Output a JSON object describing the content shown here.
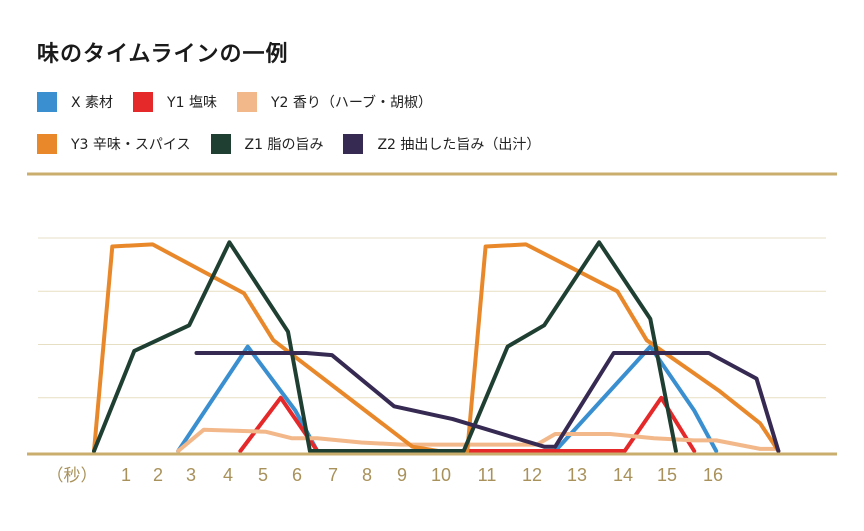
{
  "chart_data": {
    "type": "line",
    "title": "味のタイムラインの一例",
    "xlabel": "（秒）",
    "x": [
      0,
      1,
      2,
      3,
      4,
      5,
      6,
      7,
      8,
      9,
      10,
      11,
      12,
      13,
      14,
      15,
      16,
      17,
      18,
      19
    ],
    "x_tick_labels": [
      "1",
      "2",
      "3",
      "4",
      "5",
      "6",
      "7",
      "8",
      "9",
      "10",
      "11",
      "12",
      "13",
      "14",
      "15",
      "16"
    ],
    "ylim": [
      0,
      100
    ],
    "grid": true,
    "legend_position": "top-left",
    "series": [
      {
        "name": "X 素材",
        "color": "#3a8fd0",
        "points": [
          [
            2.3,
            0
          ],
          [
            4.2,
            49
          ],
          [
            5.5,
            19
          ],
          [
            6.1,
            0
          ],
          [
            12.6,
            0
          ],
          [
            15.2,
            49
          ],
          [
            16.4,
            19
          ],
          [
            17,
            0
          ]
        ]
      },
      {
        "name": "Y1 塩味",
        "color": "#e5282a",
        "points": [
          [
            4,
            0
          ],
          [
            5.1,
            25
          ],
          [
            6.1,
            0
          ],
          [
            14.5,
            0
          ],
          [
            15.5,
            25
          ],
          [
            16.4,
            0
          ]
        ]
      },
      {
        "name": "Y2 香り（ハーブ・胡椒）",
        "color": "#f2b88a",
        "points": [
          [
            2.3,
            0
          ],
          [
            3,
            10
          ],
          [
            4.7,
            9
          ],
          [
            5.4,
            6
          ],
          [
            6.1,
            6
          ],
          [
            7.3,
            4
          ],
          [
            8.4,
            3
          ],
          [
            9.4,
            3
          ],
          [
            11,
            3
          ],
          [
            12.1,
            3
          ],
          [
            12.6,
            8
          ],
          [
            14.1,
            8
          ],
          [
            15.3,
            6
          ],
          [
            16.4,
            5
          ],
          [
            17,
            5
          ],
          [
            18.2,
            1
          ],
          [
            18.6,
            1
          ]
        ]
      },
      {
        "name": "Y3 辛味・スパイス",
        "color": "#e8882a",
        "points": [
          [
            0,
            0
          ],
          [
            0.5,
            96
          ],
          [
            1.6,
            97
          ],
          [
            4.1,
            74
          ],
          [
            4.9,
            52
          ],
          [
            8.7,
            2
          ],
          [
            9.4,
            0
          ],
          [
            10.2,
            0
          ],
          [
            10.7,
            96
          ],
          [
            11.8,
            97
          ],
          [
            14.3,
            75
          ],
          [
            15.1,
            52
          ],
          [
            17.1,
            28
          ],
          [
            18.2,
            13
          ],
          [
            18.7,
            0
          ]
        ]
      },
      {
        "name": "Z1 脂の旨み",
        "color": "#1f3f33",
        "points": [
          [
            0,
            0
          ],
          [
            1.1,
            47
          ],
          [
            2.6,
            59
          ],
          [
            3.7,
            98
          ],
          [
            5.3,
            56
          ],
          [
            5.9,
            0
          ],
          [
            10.1,
            0
          ],
          [
            11.3,
            49
          ],
          [
            12.3,
            59
          ],
          [
            13.8,
            98
          ],
          [
            15.2,
            62
          ],
          [
            15.9,
            0
          ]
        ]
      },
      {
        "name": "Z2 抽出した旨み（出汁）",
        "color": "#362a52",
        "points": [
          [
            2.8,
            46
          ],
          [
            5.8,
            46
          ],
          [
            6.5,
            45
          ],
          [
            8.2,
            21
          ],
          [
            9.8,
            15
          ],
          [
            12.3,
            2
          ],
          [
            12.6,
            2
          ],
          [
            14.2,
            46
          ],
          [
            16.8,
            46
          ],
          [
            18.1,
            34
          ],
          [
            18.7,
            0
          ]
        ]
      }
    ]
  },
  "colors": {
    "axis_gold": "#c9ae6e",
    "grid": "#e7dfc4",
    "tick_label": "#a8915a"
  }
}
